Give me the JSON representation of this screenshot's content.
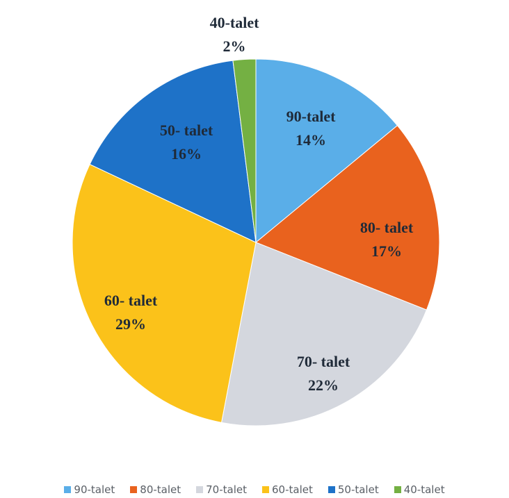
{
  "chart_data": {
    "type": "pie",
    "title": "",
    "start": "12 o'clock, clockwise",
    "slices": [
      {
        "name": "90-talet",
        "label_line1": "90-talet",
        "label_line2": "14%",
        "value": 14,
        "color": "#5aaee8"
      },
      {
        "name": "80-talet",
        "label_line1": "80- talet",
        "label_line2": "17%",
        "value": 17,
        "color": "#e9621e"
      },
      {
        "name": "70-talet",
        "label_line1": "70- talet",
        "label_line2": "22%",
        "value": 22,
        "color": "#d4d7de"
      },
      {
        "name": "60-talet",
        "label_line1": "60- talet",
        "label_line2": "29%",
        "value": 29,
        "color": "#fbc21a"
      },
      {
        "name": "50-talet",
        "label_line1": "50- talet",
        "label_line2": "16%",
        "value": 16,
        "color": "#1e72c8"
      },
      {
        "name": "40-talet",
        "label_line1": "40-talet",
        "label_line2": "2%",
        "value": 2,
        "color": "#74b043"
      }
    ],
    "legend_position": "bottom"
  }
}
